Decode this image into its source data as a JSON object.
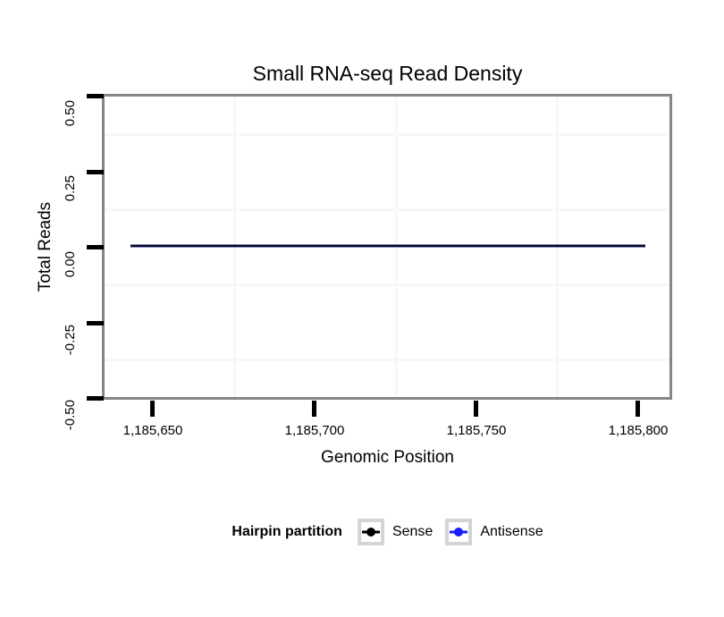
{
  "chart": {
    "title": "Small RNA-seq Read Density",
    "x_axis": {
      "label": "Genomic Position",
      "tick_labels": [
        "1,185,650",
        "1,185,700",
        "1,185,750",
        "1,185,800"
      ],
      "tick_values": [
        1185650,
        1185700,
        1185750,
        1185800
      ],
      "range": [
        1185635,
        1185810
      ]
    },
    "y_axis": {
      "label": "Total Reads",
      "tick_labels": [
        "0.50",
        "0.25",
        "0.00",
        "-0.25",
        "-0.50"
      ],
      "tick_values": [
        0.5,
        0.25,
        0.0,
        -0.25,
        -0.5
      ],
      "range": [
        -0.5,
        0.5
      ]
    },
    "legend": {
      "title": "Hairpin partition",
      "position": "bottom",
      "entries": [
        {
          "label": "Sense",
          "color": "#000000"
        },
        {
          "label": "Antisense",
          "color": "#1a1aff"
        }
      ]
    }
  },
  "chart_data": {
    "type": "line",
    "title": "Small RNA-seq Read Density",
    "xlabel": "Genomic Position",
    "ylabel": "Total Reads",
    "xlim": [
      1185635,
      1185810
    ],
    "ylim": [
      -0.5,
      0.5
    ],
    "x_data_range": [
      1185643,
      1185802
    ],
    "series": [
      {
        "name": "Sense",
        "color": "#000000",
        "y_constant": 0
      },
      {
        "name": "Antisense",
        "color": "#1a1aff",
        "y_constant": 0
      }
    ],
    "note": "Both series are flat at y = 0 across the full genomic window, overlapping as one dark line at 0.00",
    "grid": "only minor gridlines visible (midpoints between major ticks), very light gray",
    "legend_position": "bottom"
  },
  "colors": {
    "panel_border": "#868686",
    "gridline_minor": "#f7f7f7",
    "tick": "#000000",
    "legend_key_border": "#d4d4d4",
    "overlapped_line": "#06061f",
    "background": "#ffffff"
  }
}
